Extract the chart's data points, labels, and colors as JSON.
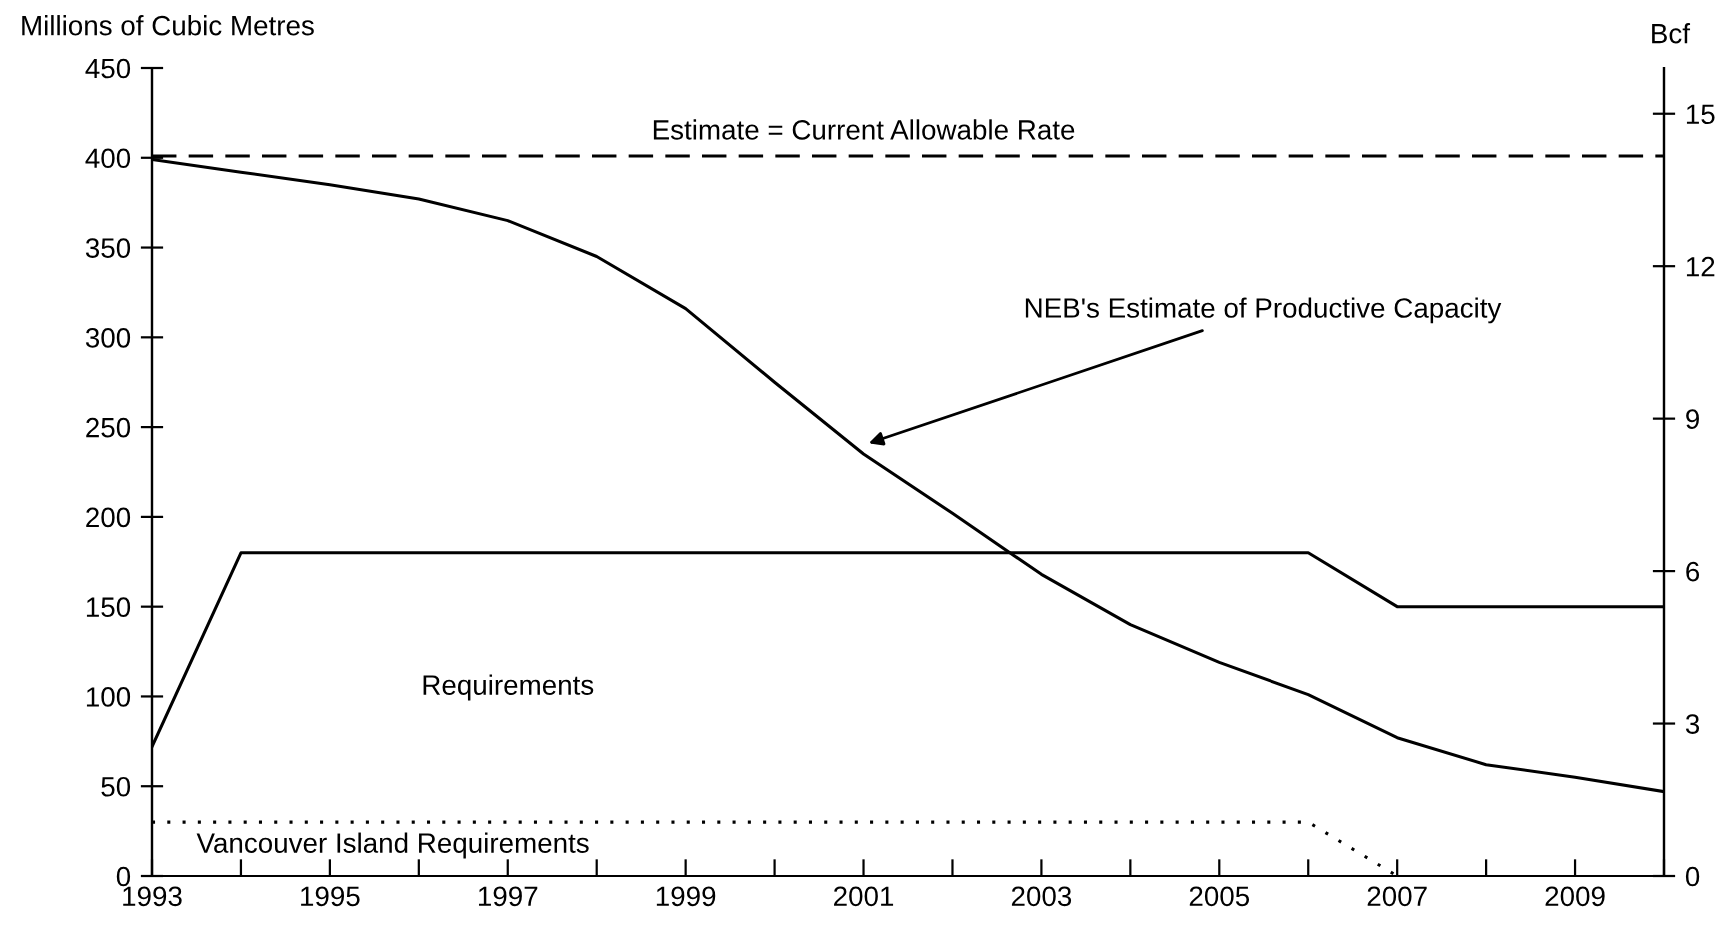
{
  "chart_data": {
    "type": "line",
    "x": [
      1993,
      1994,
      1995,
      1996,
      1997,
      1998,
      1999,
      2000,
      2001,
      2002,
      2003,
      2004,
      2005,
      2006,
      2007,
      2008,
      2009,
      2010
    ],
    "series": [
      {
        "color": "#000000",
        "line_style": "solid",
        "values": [
          399,
          392,
          385,
          377,
          365,
          345,
          316,
          275,
          235,
          202,
          168,
          140,
          119,
          101,
          77,
          62,
          55,
          47
        ]
      },
      {
        "color": "#000000",
        "line_style": "solid",
        "x": [
          1993,
          1994,
          2006,
          2007,
          2010
        ],
        "values": [
          72,
          180,
          180,
          150,
          150
        ]
      },
      {
        "color": "#000000",
        "line_style": "dotted",
        "x": [
          1993,
          2006,
          2007
        ],
        "values": [
          30,
          30,
          0
        ]
      }
    ],
    "ylabel": "Millions of Cubic Metres",
    "y2label": "Bcf",
    "xlim": [
      1993,
      2010
    ],
    "xticks": [
      1993,
      {
        "value": 1994,
        "label": null
      },
      1995,
      {
        "value": 1996,
        "label": null
      },
      1997,
      {
        "value": 1998,
        "label": null
      },
      1999,
      {
        "value": 2000,
        "label": null
      },
      2001,
      {
        "value": 2002,
        "label": null
      },
      2003,
      {
        "value": 2004,
        "label": null
      },
      2005,
      {
        "value": 2006,
        "label": null
      },
      2007,
      {
        "value": 2008,
        "label": null
      },
      2009,
      {
        "value": 2010,
        "label": null
      }
    ],
    "ylim": [
      0,
      450
    ],
    "yticks": [
      0,
      50,
      100,
      150,
      200,
      250,
      300,
      350,
      400,
      450
    ],
    "y2lim": [
      0,
      15.9
    ],
    "y2ticks": [
      0,
      3,
      6,
      9,
      12,
      15
    ],
    "ref_lines": [
      {
        "axis": "y",
        "value": 401,
        "label": "Estimate = Current Allowable Rate",
        "color": "#000000",
        "line_style": "dashed"
      }
    ],
    "annotations": [
      {
        "text": "NEB's Estimate of Productive Capacity",
        "x": 2001,
        "y": 240
      },
      "Requirements",
      "Vancouver Island Requirements"
    ],
    "grid": false,
    "marker": "none"
  }
}
